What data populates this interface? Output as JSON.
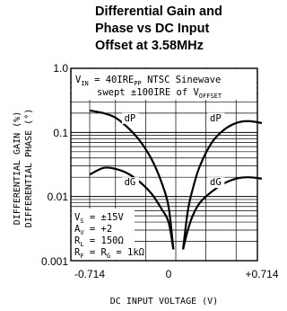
{
  "chart_data": {
    "type": "line",
    "title": [
      "Differential Gain and",
      "Phase vs DC Input",
      "Offset at 3.58MHz"
    ],
    "xlabel": "DC INPUT VOLTAGE (V)",
    "ylabel": [
      "DIFFERENTIAL GAIN (%)",
      "DIFFERENTIAL PHASE (°)"
    ],
    "y_scale": "log",
    "xlim": [
      -0.714,
      0.714
    ],
    "ylim": [
      0.001,
      1.0
    ],
    "x_ticks": [
      "-0.714",
      "0",
      "+0.714"
    ],
    "y_ticks": [
      "0.001",
      "0.01",
      "0.1",
      "1.0"
    ],
    "grid": true,
    "conditions_top": {
      "line1": "VIN = 40IREPP NTSC Sinewave",
      "line2": "swept ±100IRE of VOFFSET"
    },
    "conditions_bottom": [
      "VS = ±15V",
      "AV = +2",
      "RL = 150Ω",
      "RF = RG = 1kΩ"
    ],
    "series": [
      {
        "name": "dP",
        "x": [
          -0.714,
          -0.6,
          -0.5,
          -0.4,
          -0.3,
          -0.2,
          -0.12,
          -0.06,
          -0.02,
          0.06,
          0.1,
          0.14,
          0.2,
          0.3,
          0.4,
          0.5,
          0.6,
          0.714
        ],
        "y": [
          0.22,
          0.2,
          0.17,
          0.12,
          0.075,
          0.038,
          0.017,
          0.007,
          0.0015,
          0.0015,
          0.006,
          0.013,
          0.03,
          0.07,
          0.11,
          0.14,
          0.15,
          0.14
        ]
      },
      {
        "name": "dG",
        "x": [
          -0.714,
          -0.6,
          -0.5,
          -0.4,
          -0.3,
          -0.2,
          -0.12,
          -0.06,
          -0.02,
          0.06,
          0.1,
          0.14,
          0.2,
          0.3,
          0.4,
          0.5,
          0.6,
          0.714
        ],
        "y": [
          0.022,
          0.028,
          0.027,
          0.023,
          0.017,
          0.011,
          0.0065,
          0.004,
          0.0015,
          0.0015,
          0.003,
          0.005,
          0.008,
          0.012,
          0.016,
          0.019,
          0.02,
          0.019
        ]
      }
    ],
    "labels": [
      {
        "text": "dP",
        "x": -0.38,
        "y": 0.15
      },
      {
        "text": "dP",
        "x": 0.33,
        "y": 0.15
      },
      {
        "text": "dG",
        "x": -0.38,
        "y": 0.015
      },
      {
        "text": "dG",
        "x": 0.33,
        "y": 0.015
      }
    ]
  }
}
